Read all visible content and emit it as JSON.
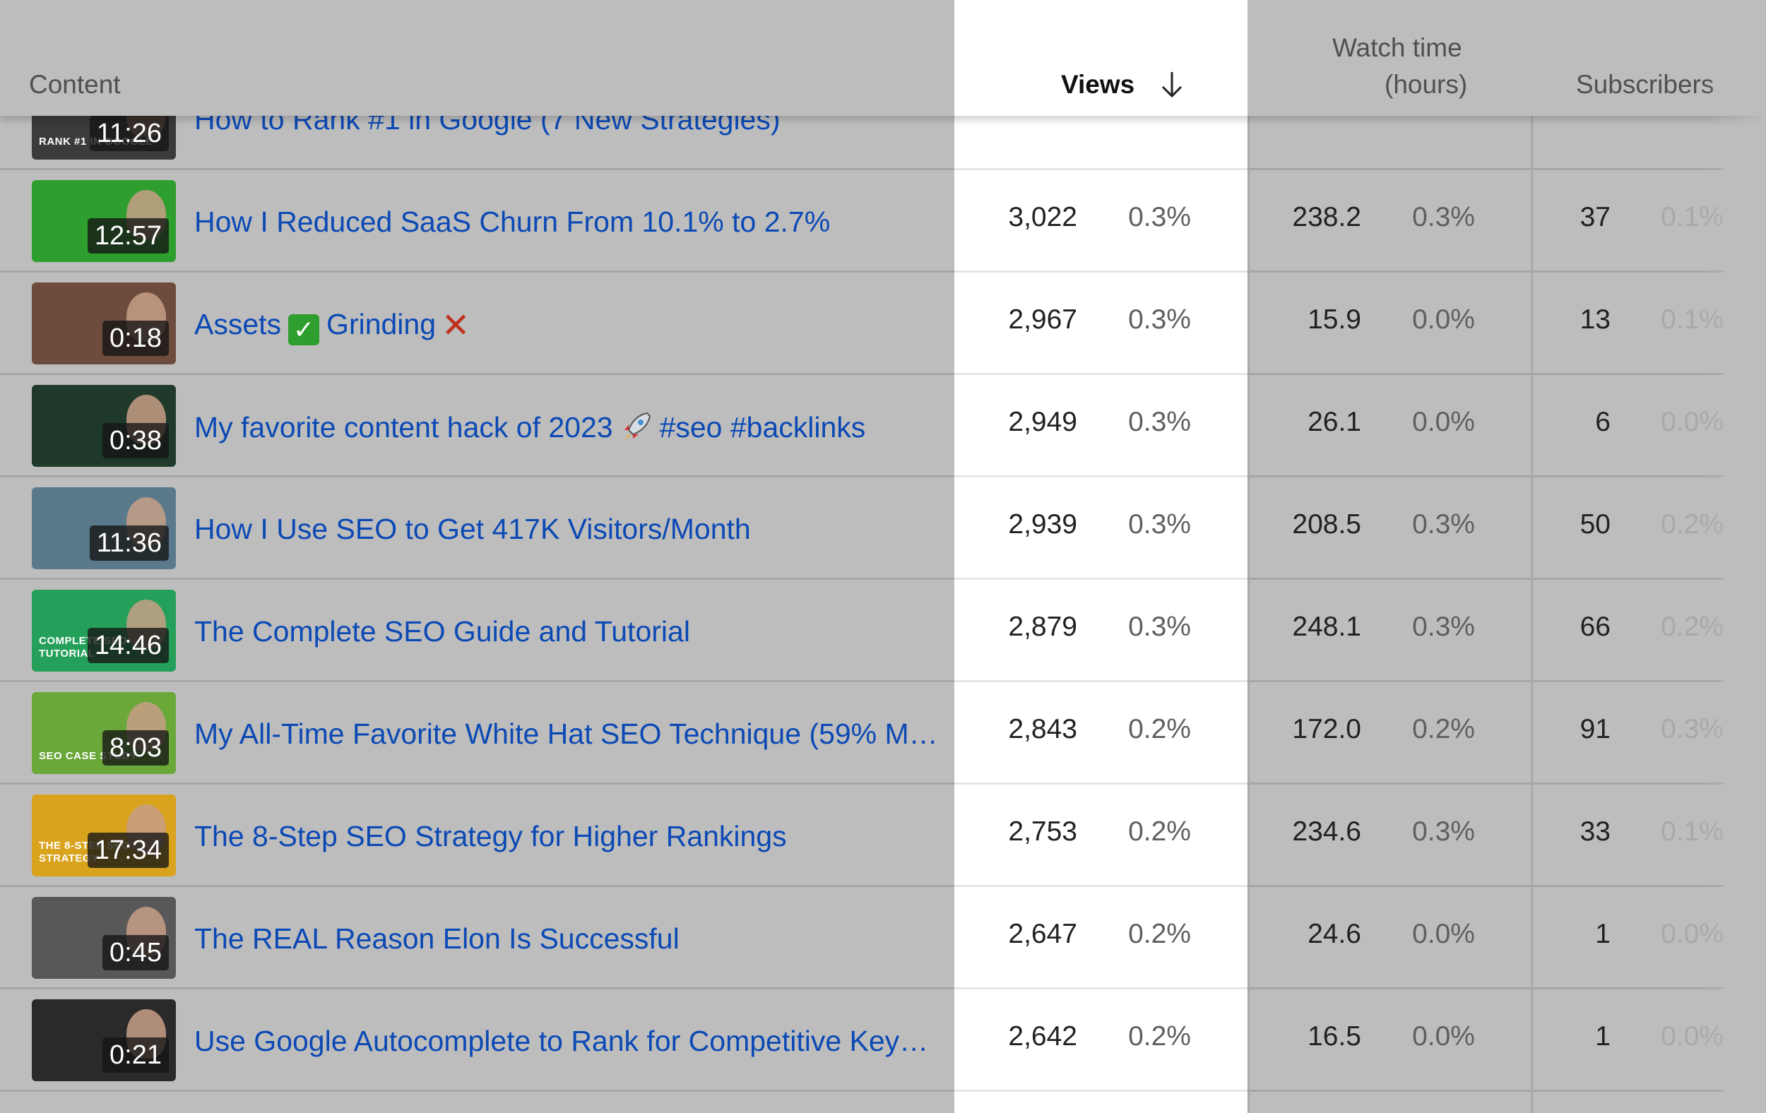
{
  "header": {
    "content": "Content",
    "views": "Views",
    "watch_time_line1": "Watch time",
    "watch_time_line2": "(hours)",
    "subscribers": "Subscribers",
    "sort_icon": "arrow-down-icon"
  },
  "partial_row": {
    "title": "How to Rank #1 in Google (7 New Strategies)",
    "duration": "11:26",
    "tag": "RANK #1 IN GOOGLE"
  },
  "rows": [
    {
      "title": "How I Reduced SaaS Churn From 10.1% to 2.7%",
      "duration": "12:57",
      "views": "3,022",
      "views_pct": "0.3%",
      "watch": "238.2",
      "watch_pct": "0.3%",
      "subs": "37",
      "subs_pct": "0.1%",
      "thumb_color": "#2e9e2e"
    },
    {
      "title": "Assets",
      "title_2": "Grinding",
      "duration": "0:18",
      "views": "2,967",
      "views_pct": "0.3%",
      "watch": "15.9",
      "watch_pct": "0.0%",
      "subs": "13",
      "subs_pct": "0.1%",
      "thumb_color": "#6d4c3d"
    },
    {
      "title": "My favorite content hack of 2023",
      "title_2": "#seo #backlinks",
      "duration": "0:38",
      "views": "2,949",
      "views_pct": "0.3%",
      "watch": "26.1",
      "watch_pct": "0.0%",
      "subs": "6",
      "subs_pct": "0.0%",
      "thumb_color": "#1f3a2a"
    },
    {
      "title": "How I Use SEO to Get 417K Visitors/Month",
      "duration": "11:36",
      "views": "2,939",
      "views_pct": "0.3%",
      "watch": "208.5",
      "watch_pct": "0.3%",
      "subs": "50",
      "subs_pct": "0.2%",
      "thumb_color": "#5a7a8c"
    },
    {
      "title": "The Complete SEO Guide and Tutorial",
      "duration": "14:46",
      "views": "2,879",
      "views_pct": "0.3%",
      "watch": "248.1",
      "watch_pct": "0.3%",
      "subs": "66",
      "subs_pct": "0.2%",
      "thumb_color": "#25a05a",
      "tag": "COMPLETE SEO TUTORIAL"
    },
    {
      "title": "My All-Time Favorite White Hat SEO Technique (59% M…",
      "duration": "8:03",
      "views": "2,843",
      "views_pct": "0.2%",
      "watch": "172.0",
      "watch_pct": "0.2%",
      "subs": "91",
      "subs_pct": "0.3%",
      "thumb_color": "#6aa83a",
      "tag": "SEO CASE STUDY"
    },
    {
      "title": "The 8-Step SEO Strategy for Higher Rankings",
      "duration": "17:34",
      "views": "2,753",
      "views_pct": "0.2%",
      "watch": "234.6",
      "watch_pct": "0.3%",
      "subs": "33",
      "subs_pct": "0.1%",
      "thumb_color": "#d9a31e",
      "tag": "THE 8-STEP SEO STRATEGY"
    },
    {
      "title": "The REAL Reason Elon Is Successful",
      "duration": "0:45",
      "views": "2,647",
      "views_pct": "0.2%",
      "watch": "24.6",
      "watch_pct": "0.0%",
      "subs": "1",
      "subs_pct": "0.0%",
      "thumb_color": "#585858"
    },
    {
      "title": "Use Google Autocomplete to Rank for Competitive Key…",
      "duration": "0:21",
      "views": "2,642",
      "views_pct": "0.2%",
      "watch": "16.5",
      "watch_pct": "0.0%",
      "subs": "1",
      "subs_pct": "0.0%",
      "thumb_color": "#2a2a2a"
    }
  ],
  "colors": {
    "title_link": "#0b49b5",
    "table_bg": "#bdbdbd",
    "views_highlight": "#ffffff"
  }
}
